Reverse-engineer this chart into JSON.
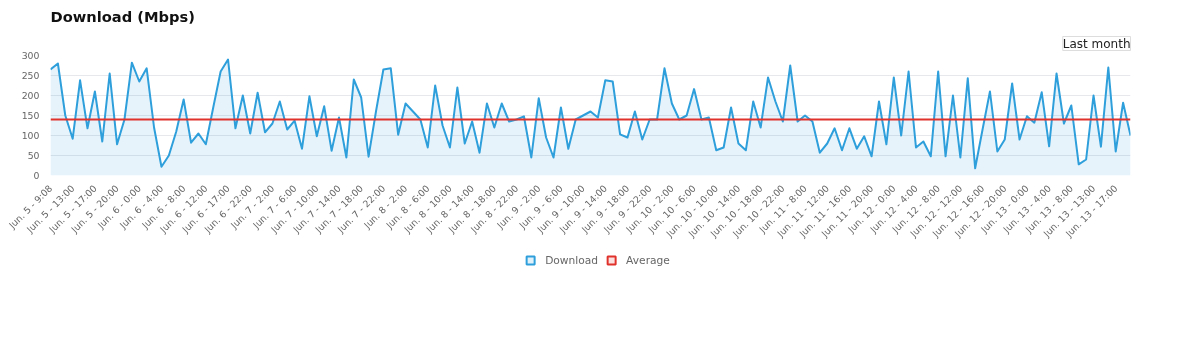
{
  "chart_data": {
    "type": "area",
    "title": "Download (Mbps)",
    "annotations": [
      "Last month"
    ],
    "categories": [
      "Jun. 5 - 9:08",
      null,
      null,
      "Jun. 5 - 13:00",
      null,
      null,
      "Jun. 5 - 17:00",
      null,
      null,
      "Jun. 5 - 20:00",
      null,
      null,
      "Jun. 6 - 0:00",
      null,
      null,
      "Jun. 6 - 4:00",
      null,
      null,
      "Jun. 6 - 8:00",
      null,
      null,
      "Jun. 6 - 12:00",
      null,
      null,
      "Jun. 6 - 17:00",
      null,
      null,
      "Jun. 6 - 22:00",
      null,
      null,
      "Jun. 7 - 2:00",
      null,
      null,
      "Jun. 7 - 6:00",
      null,
      null,
      "Jun. 7 - 10:00",
      null,
      null,
      "Jun. 7 - 14:00",
      null,
      null,
      "Jun. 7 - 18:00",
      null,
      null,
      "Jun. 7 - 22:00",
      null,
      null,
      "Jun. 8 - 2:00",
      null,
      null,
      "Jun. 8 - 6:00",
      null,
      null,
      "Jun. 8 - 10:00",
      null,
      null,
      "Jun. 8 - 14:00",
      null,
      null,
      "Jun. 8 - 18:00",
      null,
      null,
      "Jun. 8 - 22:00",
      null,
      null,
      "Jun. 9 - 2:00",
      null,
      null,
      "Jun. 9 - 6:00",
      null,
      null,
      "Jun. 9 - 10:00",
      null,
      null,
      "Jun. 9 - 14:00",
      null,
      null,
      "Jun. 9 - 18:00",
      null,
      null,
      "Jun. 9 - 22:00",
      null,
      null,
      "Jun. 10 - 2:00",
      null,
      null,
      "Jun. 10 - 6:00",
      null,
      null,
      "Jun. 10 - 10:00",
      null,
      null,
      "Jun. 10 - 14:00",
      null,
      null,
      "Jun. 10 - 18:00",
      null,
      null,
      "Jun. 10 - 22:00",
      null,
      null,
      "Jun. 11 - 8:00",
      null,
      null,
      "Jun. 11 - 12:00",
      null,
      null,
      "Jun. 11 - 16:00",
      null,
      null,
      "Jun. 11 - 20:00",
      null,
      null,
      "Jun. 12 - 0:00",
      null,
      null,
      "Jun. 12 - 4:00",
      null,
      null,
      "Jun. 12 - 8:00",
      null,
      null,
      "Jun. 12 - 12:00",
      null,
      null,
      "Jun. 12 - 16:00",
      null,
      null,
      "Jun. 12 - 20:00",
      null,
      null,
      "Jun. 13 - 0:00",
      null,
      null,
      "Jun. 13 - 4:00",
      null,
      null,
      "Jun. 13 - 8:00",
      null,
      null,
      "Jun. 13 - 13:00",
      null,
      null,
      "Jun. 13 - 17:00",
      null,
      null
    ],
    "series": [
      {
        "name": "Download",
        "color": "#2e9fdb",
        "values": [
          265,
          280,
          150,
          92,
          238,
          118,
          210,
          85,
          255,
          78,
          140,
          282,
          235,
          268,
          120,
          22,
          50,
          110,
          190,
          82,
          105,
          78,
          170,
          260,
          290,
          118,
          200,
          105,
          207,
          108,
          130,
          185,
          115,
          137,
          67,
          198,
          98,
          173,
          62,
          145,
          45,
          240,
          195,
          47,
          160,
          265,
          268,
          102,
          180,
          160,
          140,
          70,
          225,
          125,
          70,
          220,
          80,
          135,
          57,
          180,
          120,
          180,
          135,
          140,
          148,
          45,
          193,
          95,
          45,
          170,
          67,
          140,
          150,
          160,
          145,
          238,
          235,
          103,
          95,
          160,
          90,
          140,
          140,
          268,
          180,
          140,
          150,
          216,
          140,
          145,
          63,
          70,
          170,
          80,
          63,
          185,
          120,
          245,
          185,
          135,
          275,
          135,
          150,
          135,
          57,
          80,
          118,
          63,
          118,
          67,
          98,
          48,
          185,
          78,
          245,
          100,
          260,
          70,
          85,
          48,
          260,
          48,
          200,
          45,
          243,
          18,
          115,
          210,
          60,
          90,
          230,
          90,
          148,
          132,
          208,
          73,
          255,
          130,
          175,
          28,
          40,
          200,
          72,
          270,
          60,
          182,
          100
        ]
      }
    ],
    "ref_lines": [
      {
        "axis": "y",
        "value": 140,
        "label": "Average",
        "color": "#e0312b"
      }
    ],
    "ylim": [
      0,
      300
    ],
    "yticks": [
      0,
      50,
      100,
      150,
      200,
      250,
      300
    ],
    "grid": "y",
    "legend": "bottom",
    "marker": "none",
    "line_style": "solid"
  }
}
